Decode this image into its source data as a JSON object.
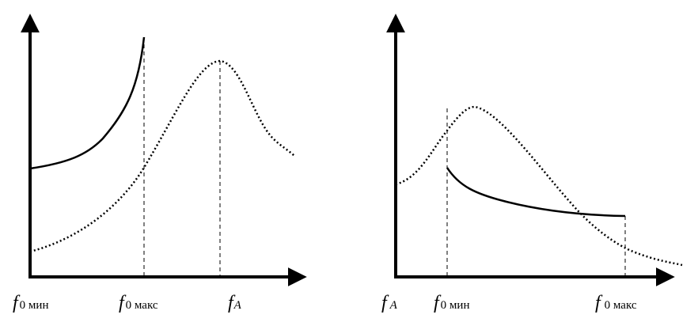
{
  "left_panel": {
    "labels": [
      {
        "symbol": "f",
        "sub": "0 мин"
      },
      {
        "symbol": "f",
        "sub": "0 макс"
      },
      {
        "symbol": "f",
        "sub": "A"
      }
    ]
  },
  "right_panel": {
    "labels": [
      {
        "symbol": "f",
        "sub": "A"
      },
      {
        "symbol": "f",
        "sub": "0 мин"
      },
      {
        "symbol": "f",
        "sub": "0 макс"
      }
    ]
  }
}
